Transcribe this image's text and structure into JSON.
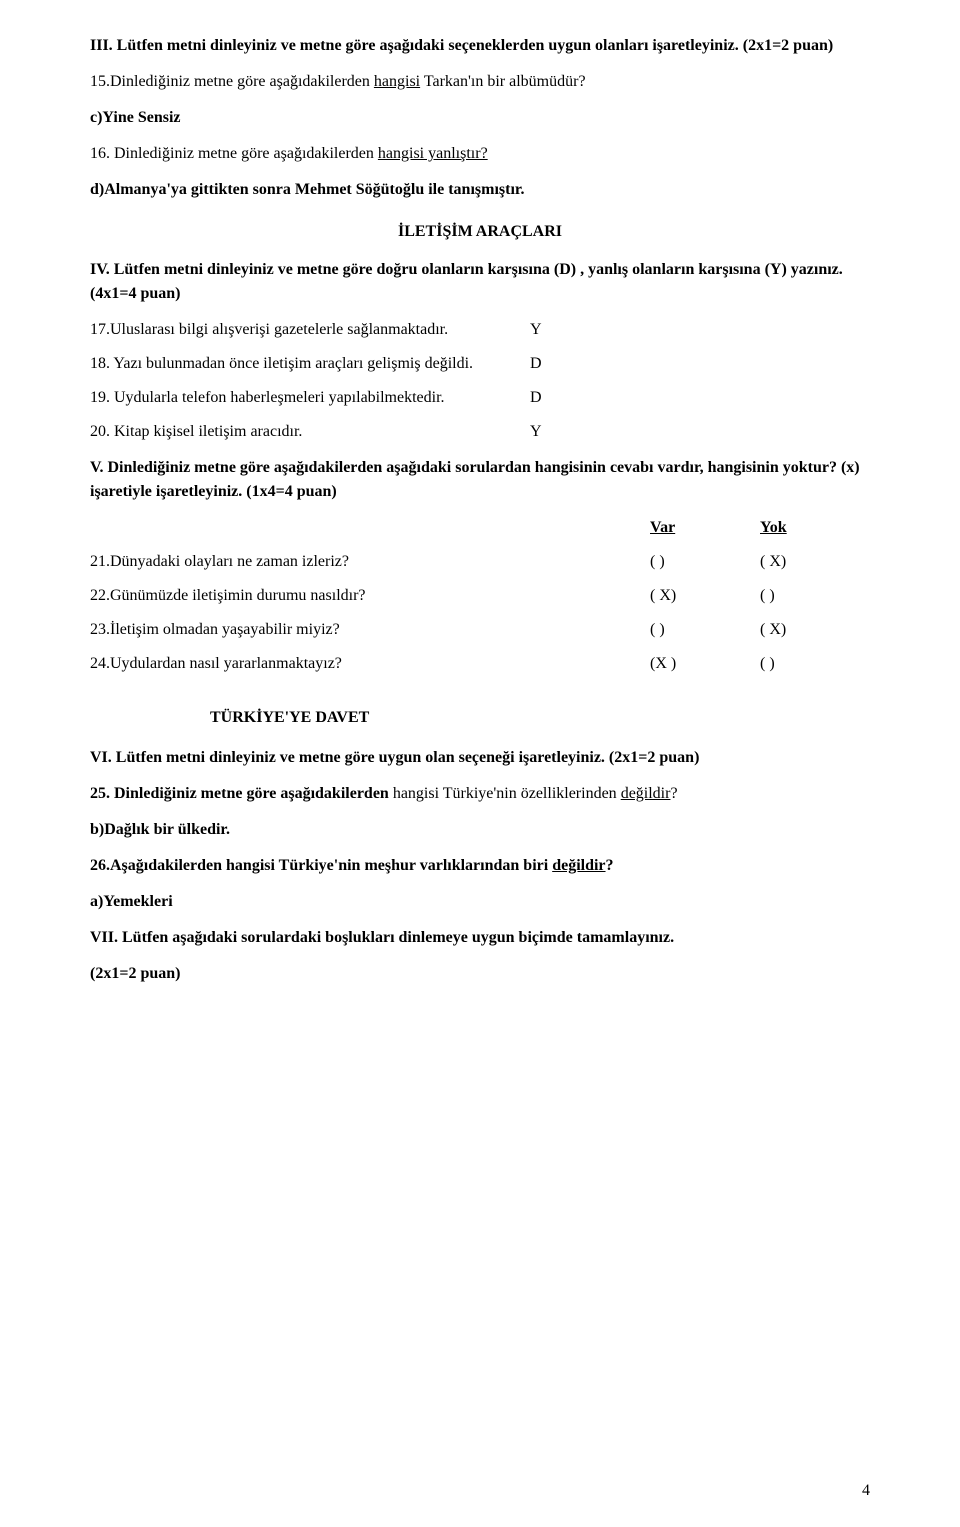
{
  "section3": {
    "prompt_prefix": "III. Lütfen metni dinleyiniz ve metne göre aşağıdaki seçeneklerden uygun olanları işaretleyiniz. ",
    "prompt_suffix": "(2x1=2 puan)",
    "q15_prefix": "15.Dinlediğiniz metne göre aşağıdakilerden ",
    "q15_underlined": "hangisi",
    "q15_suffix": " Tarkan'ın bir albümüdür?",
    "a15": "c)Yine Sensiz",
    "q16_prefix": "16. Dinlediğiniz metne göre aşağıdakilerden ",
    "q16_underlined": "hangisi yanlıştır?",
    "a16": "d)Almanya'ya gittikten sonra Mehmet Söğütoğlu ile tanışmıştır."
  },
  "heading1": "İLETİŞİM ARAÇLARI",
  "section4": {
    "prompt": "IV. Lütfen metni dinleyiniz ve metne göre  doğru olanların karşısına (D) , yanlış olanların karşısına (Y) yazınız.  (4x1=4 puan)",
    "items": [
      {
        "text": "17.Uluslarası bilgi alışverişi gazetelerle sağlanmaktadır.",
        "ans": "Y"
      },
      {
        "text": "18. Yazı bulunmadan önce iletişim araçları gelişmiş değildi.",
        "ans": "D"
      },
      {
        "text": "19. Uydularla telefon haberleşmeleri yapılabilmektedir.",
        "ans": "D"
      },
      {
        "text": "20. Kitap kişisel iletişim aracıdır.",
        "ans": "Y"
      }
    ]
  },
  "section5": {
    "prompt": "V.  Dinlediğiniz metne göre aşağıdakilerden aşağıdaki sorulardan hangisinin cevabı vardır, hangisinin yoktur? (x) işaretiyle işaretleyiniz. (1x4=4 puan)",
    "col_var": "Var",
    "col_yok": "Yok",
    "items": [
      {
        "text": "21.Dünyadaki olayları ne zaman izleriz?",
        "var": "(   )",
        "yok": "( X)"
      },
      {
        "text": "22.Günümüzde iletişimin durumu nasıldır?",
        "var": "( X)",
        "yok": "(    )"
      },
      {
        "text": "23.İletişim olmadan yaşayabilir miyiz?",
        "var": "(   )",
        "yok": "( X)"
      },
      {
        "text": "24.Uydulardan nasıl yararlanmaktayız?",
        "var": "(X )",
        "yok": "(    )"
      }
    ]
  },
  "heading2": "TÜRKİYE'YE DAVET",
  "section6": {
    "prompt": "VI. Lütfen metni dinleyiniz ve metne göre  uygun olan seçeneği  işaretleyiniz. (2x1=2 puan)",
    "q25_prefix": " 25.  Dinlediğiniz metne göre aşağıdakilerden",
    "q25_mid": "  hangisi  Türkiye'nin özelliklerinden ",
    "q25_underlined": "değildir",
    "q25_suffix": "?",
    "a25": "b)Dağlık bir ülkedir.",
    "q26_prefix": " 26.Aşağıdakilerden hangisi Türkiye'nin meşhur varlıklarından biri   ",
    "q26_underlined": "değildir",
    "q26_suffix": "?",
    "a26": "a)Yemekleri"
  },
  "section7": {
    "prompt": "VII. Lütfen aşağıdaki sorulardaki boşlukları dinlemeye uygun biçimde tamamlayınız.",
    "points": " (2x1=2 puan)"
  },
  "page_number": "4"
}
